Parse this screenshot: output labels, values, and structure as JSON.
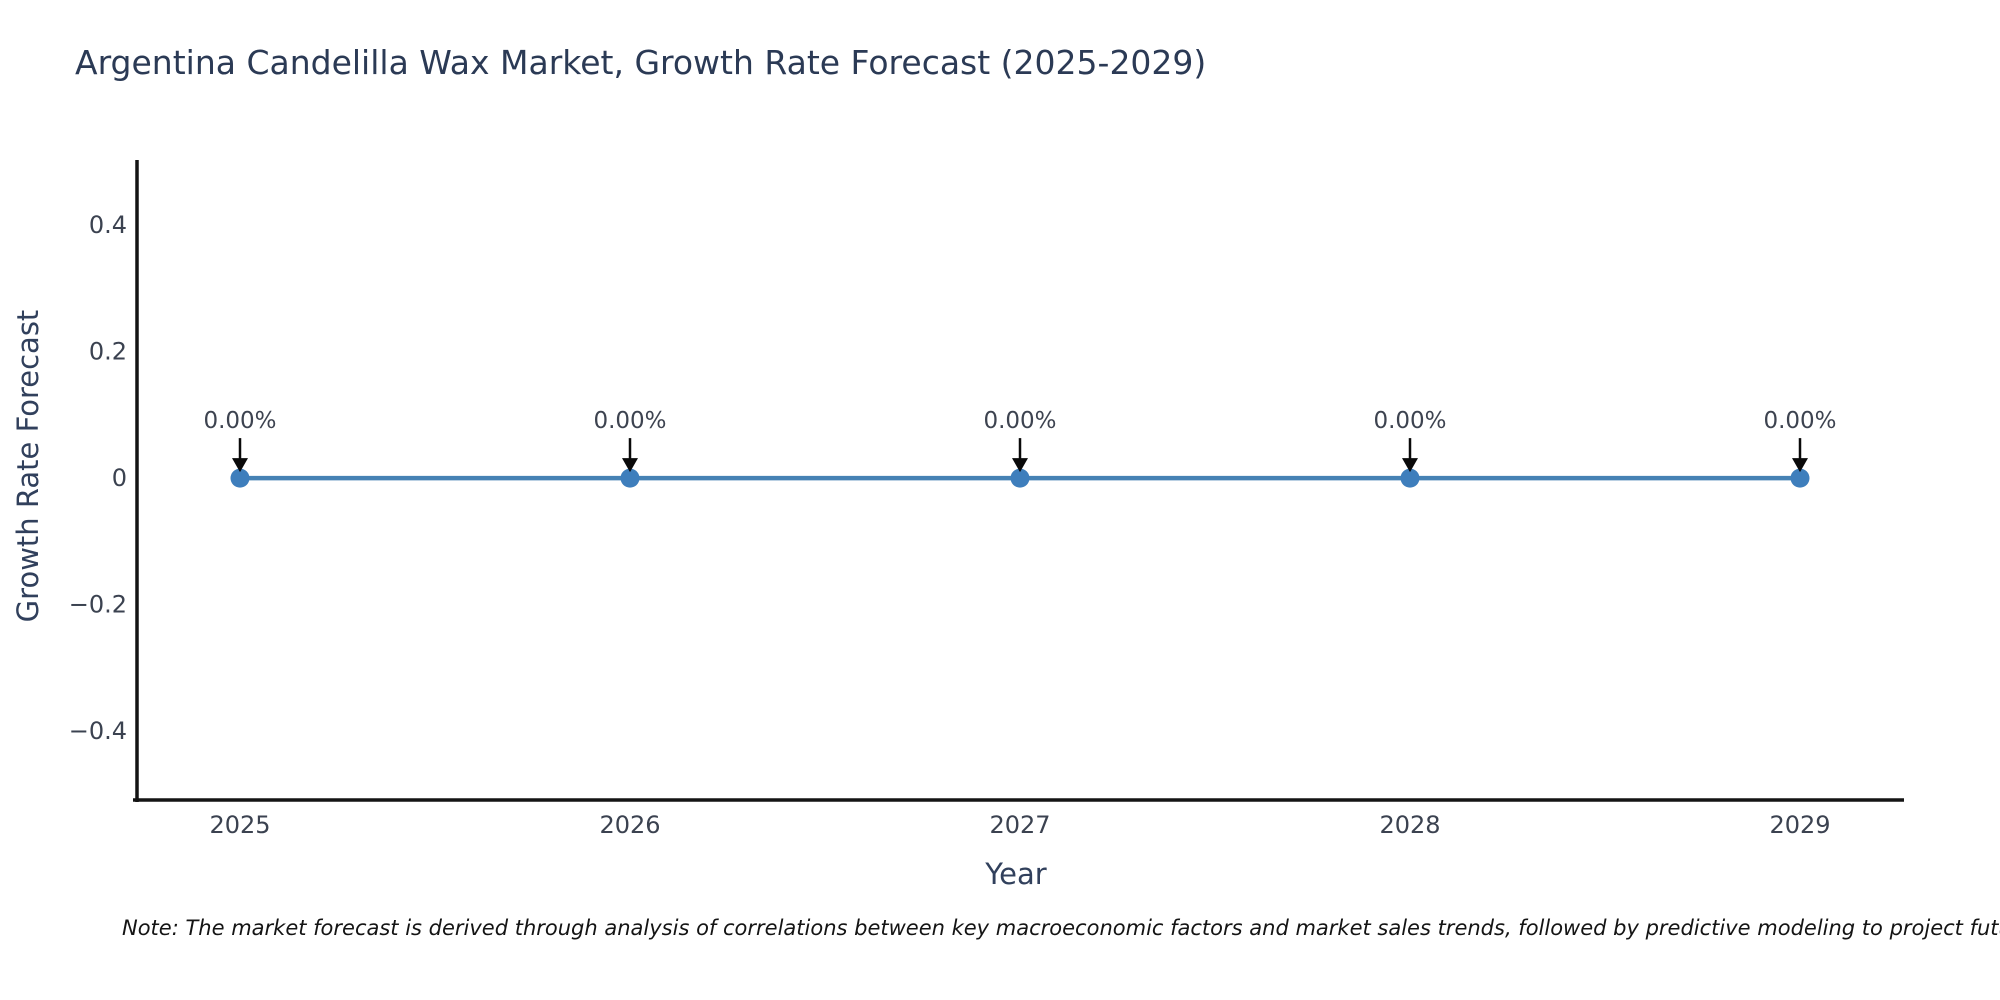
{
  "figure": {
    "note": "Note: The market forecast is derived through analysis of correlations between key macroeconomic factors and market sales trends, followed by predictive modeling to project future sa"
  },
  "chart_data": {
    "type": "line",
    "title": "Argentina Candelilla Wax Market, Growth Rate Forecast (2025-2029)",
    "xlabel": "Year",
    "ylabel": "Growth Rate Forecast",
    "categories": [
      "2025",
      "2026",
      "2027",
      "2028",
      "2029"
    ],
    "values": [
      0,
      0,
      0,
      0,
      0
    ],
    "point_labels": [
      "0.00%",
      "0.00%",
      "0.00%",
      "0.00%",
      "0.00%"
    ],
    "ytick_values": [
      0.4,
      0.2,
      0,
      -0.2,
      -0.4
    ],
    "ytick_labels": [
      "0.4",
      "0.2",
      "0",
      "−0.2",
      "−0.4"
    ],
    "ylim": [
      -0.509,
      0.503
    ],
    "grid": false,
    "legend": false,
    "markers": "circle",
    "annotation_style": "value label with downward arrow to each point",
    "colors": {
      "line": "#4682b4",
      "marker": "#3e7ebc",
      "axis": "#141414",
      "tick_label": "#3b4250",
      "axis_label": "#31405c",
      "title": "#2b3a55",
      "annotation_text": "#3d4350",
      "annotation_arrow": "#0a0a0a",
      "note": "#141414",
      "background": "#ffffff"
    }
  }
}
